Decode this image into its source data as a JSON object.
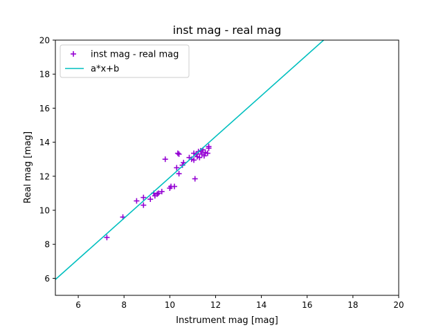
{
  "chart_data": {
    "type": "scatter",
    "title": "inst mag - real mag",
    "xlabel": "Instrument mag [mag]",
    "ylabel": "Real mag [mag]",
    "xlim": [
      5,
      20
    ],
    "ylim": [
      5,
      20
    ],
    "xticks": [
      "6",
      "8",
      "10",
      "12",
      "14",
      "16",
      "18",
      "20"
    ],
    "yticks": [
      "6",
      "8",
      "10",
      "12",
      "14",
      "16",
      "18",
      "20"
    ],
    "grid": false,
    "legend_position": "upper-left",
    "series": [
      {
        "name": "inst mag - real mag",
        "kind": "scatter",
        "marker": "plus",
        "color": "#9400d3",
        "x": [
          7.25,
          7.95,
          8.55,
          8.85,
          8.85,
          9.15,
          9.3,
          9.35,
          9.45,
          9.5,
          9.65,
          9.8,
          10.0,
          10.05,
          10.2,
          10.3,
          10.35,
          10.4,
          10.4,
          10.55,
          10.6,
          10.85,
          10.95,
          11.05,
          11.05,
          11.1,
          11.15,
          11.2,
          11.25,
          11.3,
          11.35,
          11.4,
          11.45,
          11.5,
          11.55,
          11.65,
          11.7,
          11.7
        ],
        "y": [
          8.4,
          9.6,
          10.55,
          10.75,
          10.3,
          10.65,
          11.0,
          10.85,
          10.95,
          11.0,
          11.1,
          13.0,
          11.3,
          11.4,
          11.4,
          12.5,
          13.35,
          13.3,
          12.15,
          12.65,
          12.8,
          13.1,
          13.0,
          12.95,
          13.35,
          11.85,
          13.3,
          13.15,
          13.45,
          13.1,
          13.5,
          13.3,
          13.55,
          13.2,
          13.4,
          13.35,
          13.65,
          13.75
        ]
      },
      {
        "name": "a*x+b",
        "kind": "line",
        "color": "#00bfbf",
        "x": [
          5,
          16.72
        ],
        "y": [
          5.93,
          20
        ]
      }
    ]
  }
}
